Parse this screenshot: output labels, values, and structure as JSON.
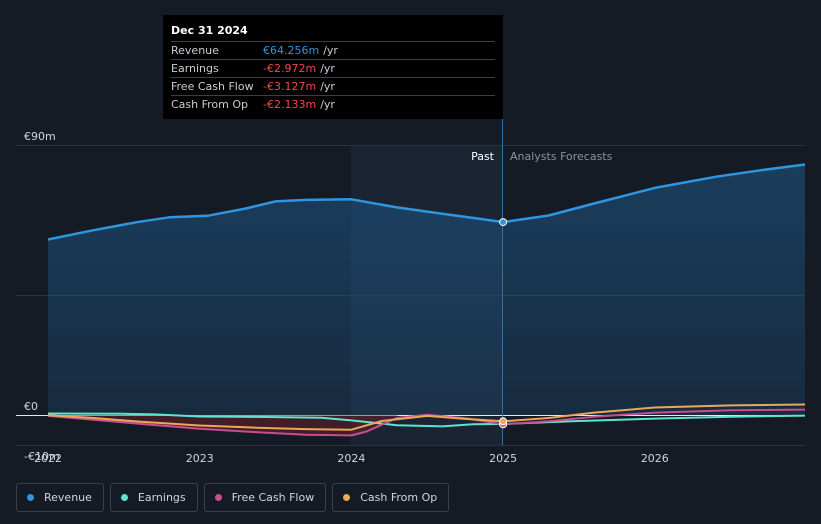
{
  "tooltip": {
    "date": "Dec 31 2024",
    "rows": [
      {
        "label": "Revenue",
        "value": "€64.256m",
        "unit": "/yr",
        "color": "#2f95e1"
      },
      {
        "label": "Earnings",
        "value": "-€2.972m",
        "unit": "/yr",
        "color": "#f0494a"
      },
      {
        "label": "Free Cash Flow",
        "value": "-€3.127m",
        "unit": "/yr",
        "color": "#f0494a"
      },
      {
        "label": "Cash From Op",
        "value": "-€2.133m",
        "unit": "/yr",
        "color": "#f0494a"
      }
    ]
  },
  "labels": {
    "past": "Past",
    "forecast": "Analysts Forecasts"
  },
  "legend": [
    {
      "label": "Revenue",
      "color": "#2f95e1"
    },
    {
      "label": "Earnings",
      "color": "#5ee3cf"
    },
    {
      "label": "Free Cash Flow",
      "color": "#c94d8e"
    },
    {
      "label": "Cash From Op",
      "color": "#e8a85a"
    }
  ],
  "chart_data": {
    "type": "line",
    "y_tick_labels": [
      "€90m",
      "€0",
      "-€10m"
    ],
    "x_tick_labels": [
      "2022",
      "2023",
      "2024",
      "2025",
      "2026"
    ],
    "ylim": [
      -10,
      90
    ],
    "xlim": [
      2022.0,
      2026.99
    ],
    "past_end": 2025.0,
    "series": [
      {
        "name": "Revenue",
        "color": "#2f95e1",
        "x": [
          2022.0,
          2022.3,
          2022.6,
          2022.8,
          2023.05,
          2023.3,
          2023.5,
          2023.7,
          2024.0,
          2024.3,
          2024.6,
          2024.8,
          2025.0,
          2025.3,
          2025.6,
          2026.0,
          2026.4,
          2026.7,
          2026.99
        ],
        "y": [
          58.5,
          61.6,
          64.4,
          65.9,
          66.4,
          68.8,
          71.2,
          71.7,
          71.9,
          69.2,
          67.1,
          65.7,
          64.3,
          66.5,
          70.5,
          75.7,
          79.4,
          81.6,
          83.5
        ]
      },
      {
        "name": "Earnings",
        "color": "#5ee3cf",
        "x": [
          2022.0,
          2022.5,
          2022.7,
          2023.0,
          2023.5,
          2023.8,
          2024.0,
          2024.3,
          2024.6,
          2024.8,
          2025.0,
          2025.5,
          2026.0,
          2026.5,
          2026.99
        ],
        "y": [
          0.5,
          0.4,
          0.2,
          -0.5,
          -0.7,
          -0.9,
          -1.8,
          -3.4,
          -3.8,
          -3.1,
          -3.0,
          -2.0,
          -1.2,
          -0.6,
          -0.2
        ]
      },
      {
        "name": "Free Cash Flow",
        "color": "#c94d8e",
        "x": [
          2022.0,
          2022.3,
          2022.6,
          2023.0,
          2023.4,
          2023.7,
          2024.0,
          2024.1,
          2024.3,
          2024.5,
          2024.75,
          2025.0,
          2025.3,
          2025.6,
          2026.0,
          2026.5,
          2026.99
        ],
        "y": [
          -0.3,
          -1.6,
          -2.9,
          -4.6,
          -5.8,
          -6.6,
          -6.8,
          -5.5,
          -1.0,
          0.1,
          -1.1,
          -3.1,
          -2.1,
          -0.6,
          0.8,
          1.6,
          1.8
        ]
      },
      {
        "name": "Cash From Op",
        "color": "#e8a85a",
        "x": [
          2022.0,
          2022.3,
          2022.6,
          2023.0,
          2023.4,
          2023.7,
          2024.0,
          2024.2,
          2024.5,
          2024.75,
          2025.0,
          2025.3,
          2025.6,
          2026.0,
          2026.5,
          2026.99
        ],
        "y": [
          -0.1,
          -1.0,
          -2.2,
          -3.5,
          -4.3,
          -4.7,
          -4.9,
          -2.0,
          -0.3,
          -1.3,
          -2.1,
          -1.0,
          0.8,
          2.5,
          3.2,
          3.5
        ]
      }
    ]
  }
}
